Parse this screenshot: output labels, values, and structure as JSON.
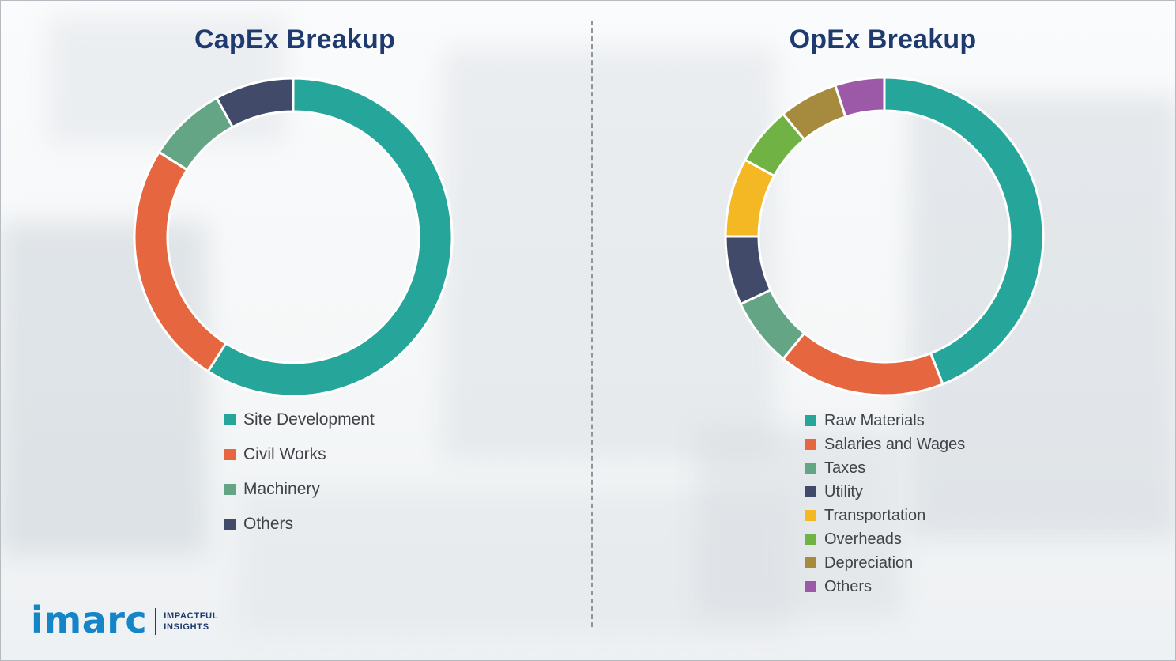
{
  "chart_data": [
    {
      "type": "pie",
      "subtype": "donut",
      "title": "CapEx Breakup",
      "labels": [
        "Site Development",
        "Civil Works",
        "Machinery",
        "Others"
      ],
      "values": [
        59,
        25,
        8,
        8
      ],
      "colors": [
        "#26A69A",
        "#E5663F",
        "#63A584",
        "#414B69"
      ],
      "legend_position": "bottom-left",
      "start_angle_deg": 0,
      "direction": "clockwise",
      "inner_radius_ratio": 0.79,
      "data_labels_shown": false
    },
    {
      "type": "pie",
      "subtype": "donut",
      "title": "OpEx Breakup",
      "labels": [
        "Raw Materials",
        "Salaries and Wages",
        "Taxes",
        "Utility",
        "Transportation",
        "Overheads",
        "Depreciation",
        "Others"
      ],
      "values": [
        44,
        17,
        7,
        7,
        8,
        6,
        6,
        5
      ],
      "colors": [
        "#26A69A",
        "#E5663F",
        "#63A584",
        "#414B69",
        "#F3B824",
        "#70B244",
        "#A68A3E",
        "#9C59A8"
      ],
      "legend_position": "bottom-left",
      "start_angle_deg": 0,
      "direction": "clockwise",
      "inner_radius_ratio": 0.79,
      "data_labels_shown": false
    }
  ],
  "branding": {
    "logo_text": "imarc",
    "tagline_line1": "IMPACTFUL",
    "tagline_line2": "INSIGHTS"
  }
}
